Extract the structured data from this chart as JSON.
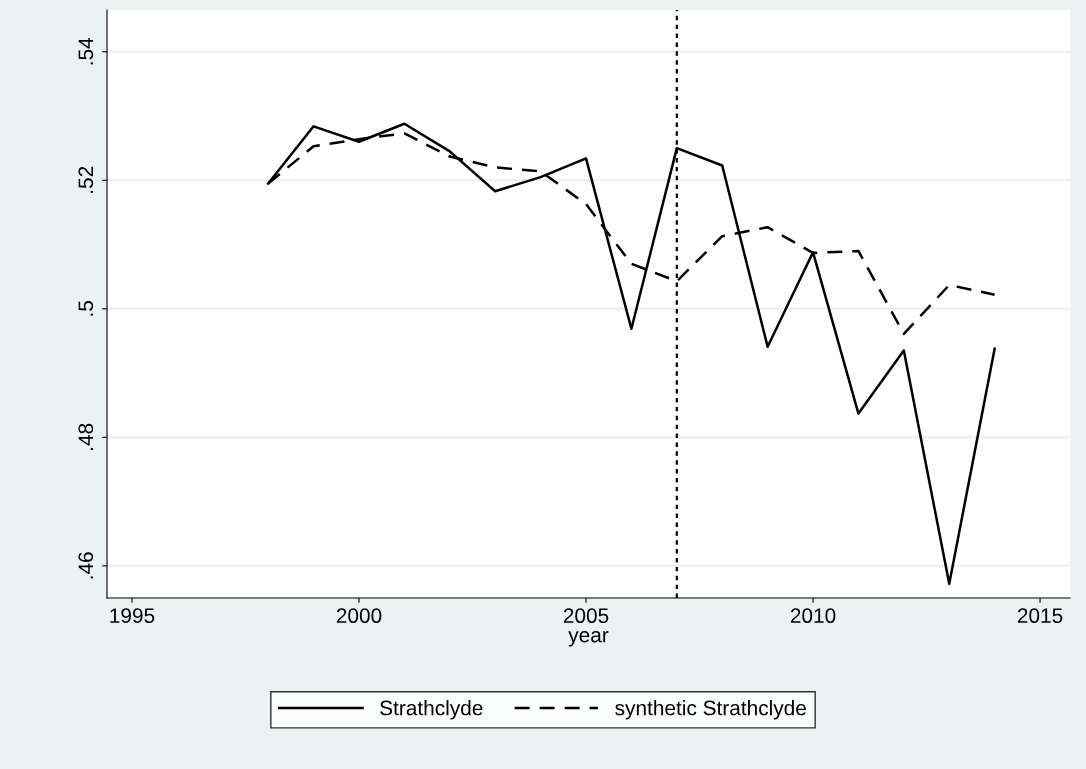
{
  "chart_data": {
    "type": "line",
    "xlabel": "year",
    "x": [
      1998,
      1999,
      2000,
      2001,
      2002,
      2003,
      2004,
      2005,
      2006,
      2007,
      2008,
      2009,
      2010,
      2011,
      2012,
      2013,
      2014
    ],
    "series": [
      {
        "name": "Strathclyde",
        "color": "#000000",
        "line_style": "solid",
        "values": [
          0.5195,
          0.5284,
          0.526,
          0.5288,
          0.5245,
          0.5183,
          0.5205,
          0.5234,
          0.4969,
          0.525,
          0.5223,
          0.4941,
          0.5088,
          0.4837,
          0.4935,
          0.4572,
          0.4938
        ]
      },
      {
        "name": "synthetic Strathclyde",
        "color": "#000000",
        "line_style": "dashed",
        "values": [
          0.5195,
          0.5253,
          0.5264,
          0.5273,
          0.5237,
          0.522,
          0.5214,
          0.5163,
          0.507,
          0.5043,
          0.5113,
          0.5127,
          0.5087,
          0.509,
          0.4961,
          0.5037,
          0.5022
        ]
      }
    ],
    "xlim": [
      1994.45,
      2015.66
    ],
    "xticks": [
      1995,
      2000,
      2005,
      2010,
      2015
    ],
    "ylim": [
      0.455,
      0.5465
    ],
    "yticks": [
      {
        "value": 0.46,
        "label": ".46"
      },
      {
        "value": 0.48,
        "label": ".48"
      },
      {
        "value": 0.5,
        "label": ".5"
      },
      {
        "value": 0.52,
        "label": ".52"
      },
      {
        "value": 0.54,
        "label": ".54"
      }
    ],
    "ref_lines": [
      {
        "axis": "x",
        "value": 2007,
        "color": "#000000",
        "line_style": "dotted"
      }
    ],
    "grid": "y",
    "legend": "bottom",
    "marker": "none"
  }
}
